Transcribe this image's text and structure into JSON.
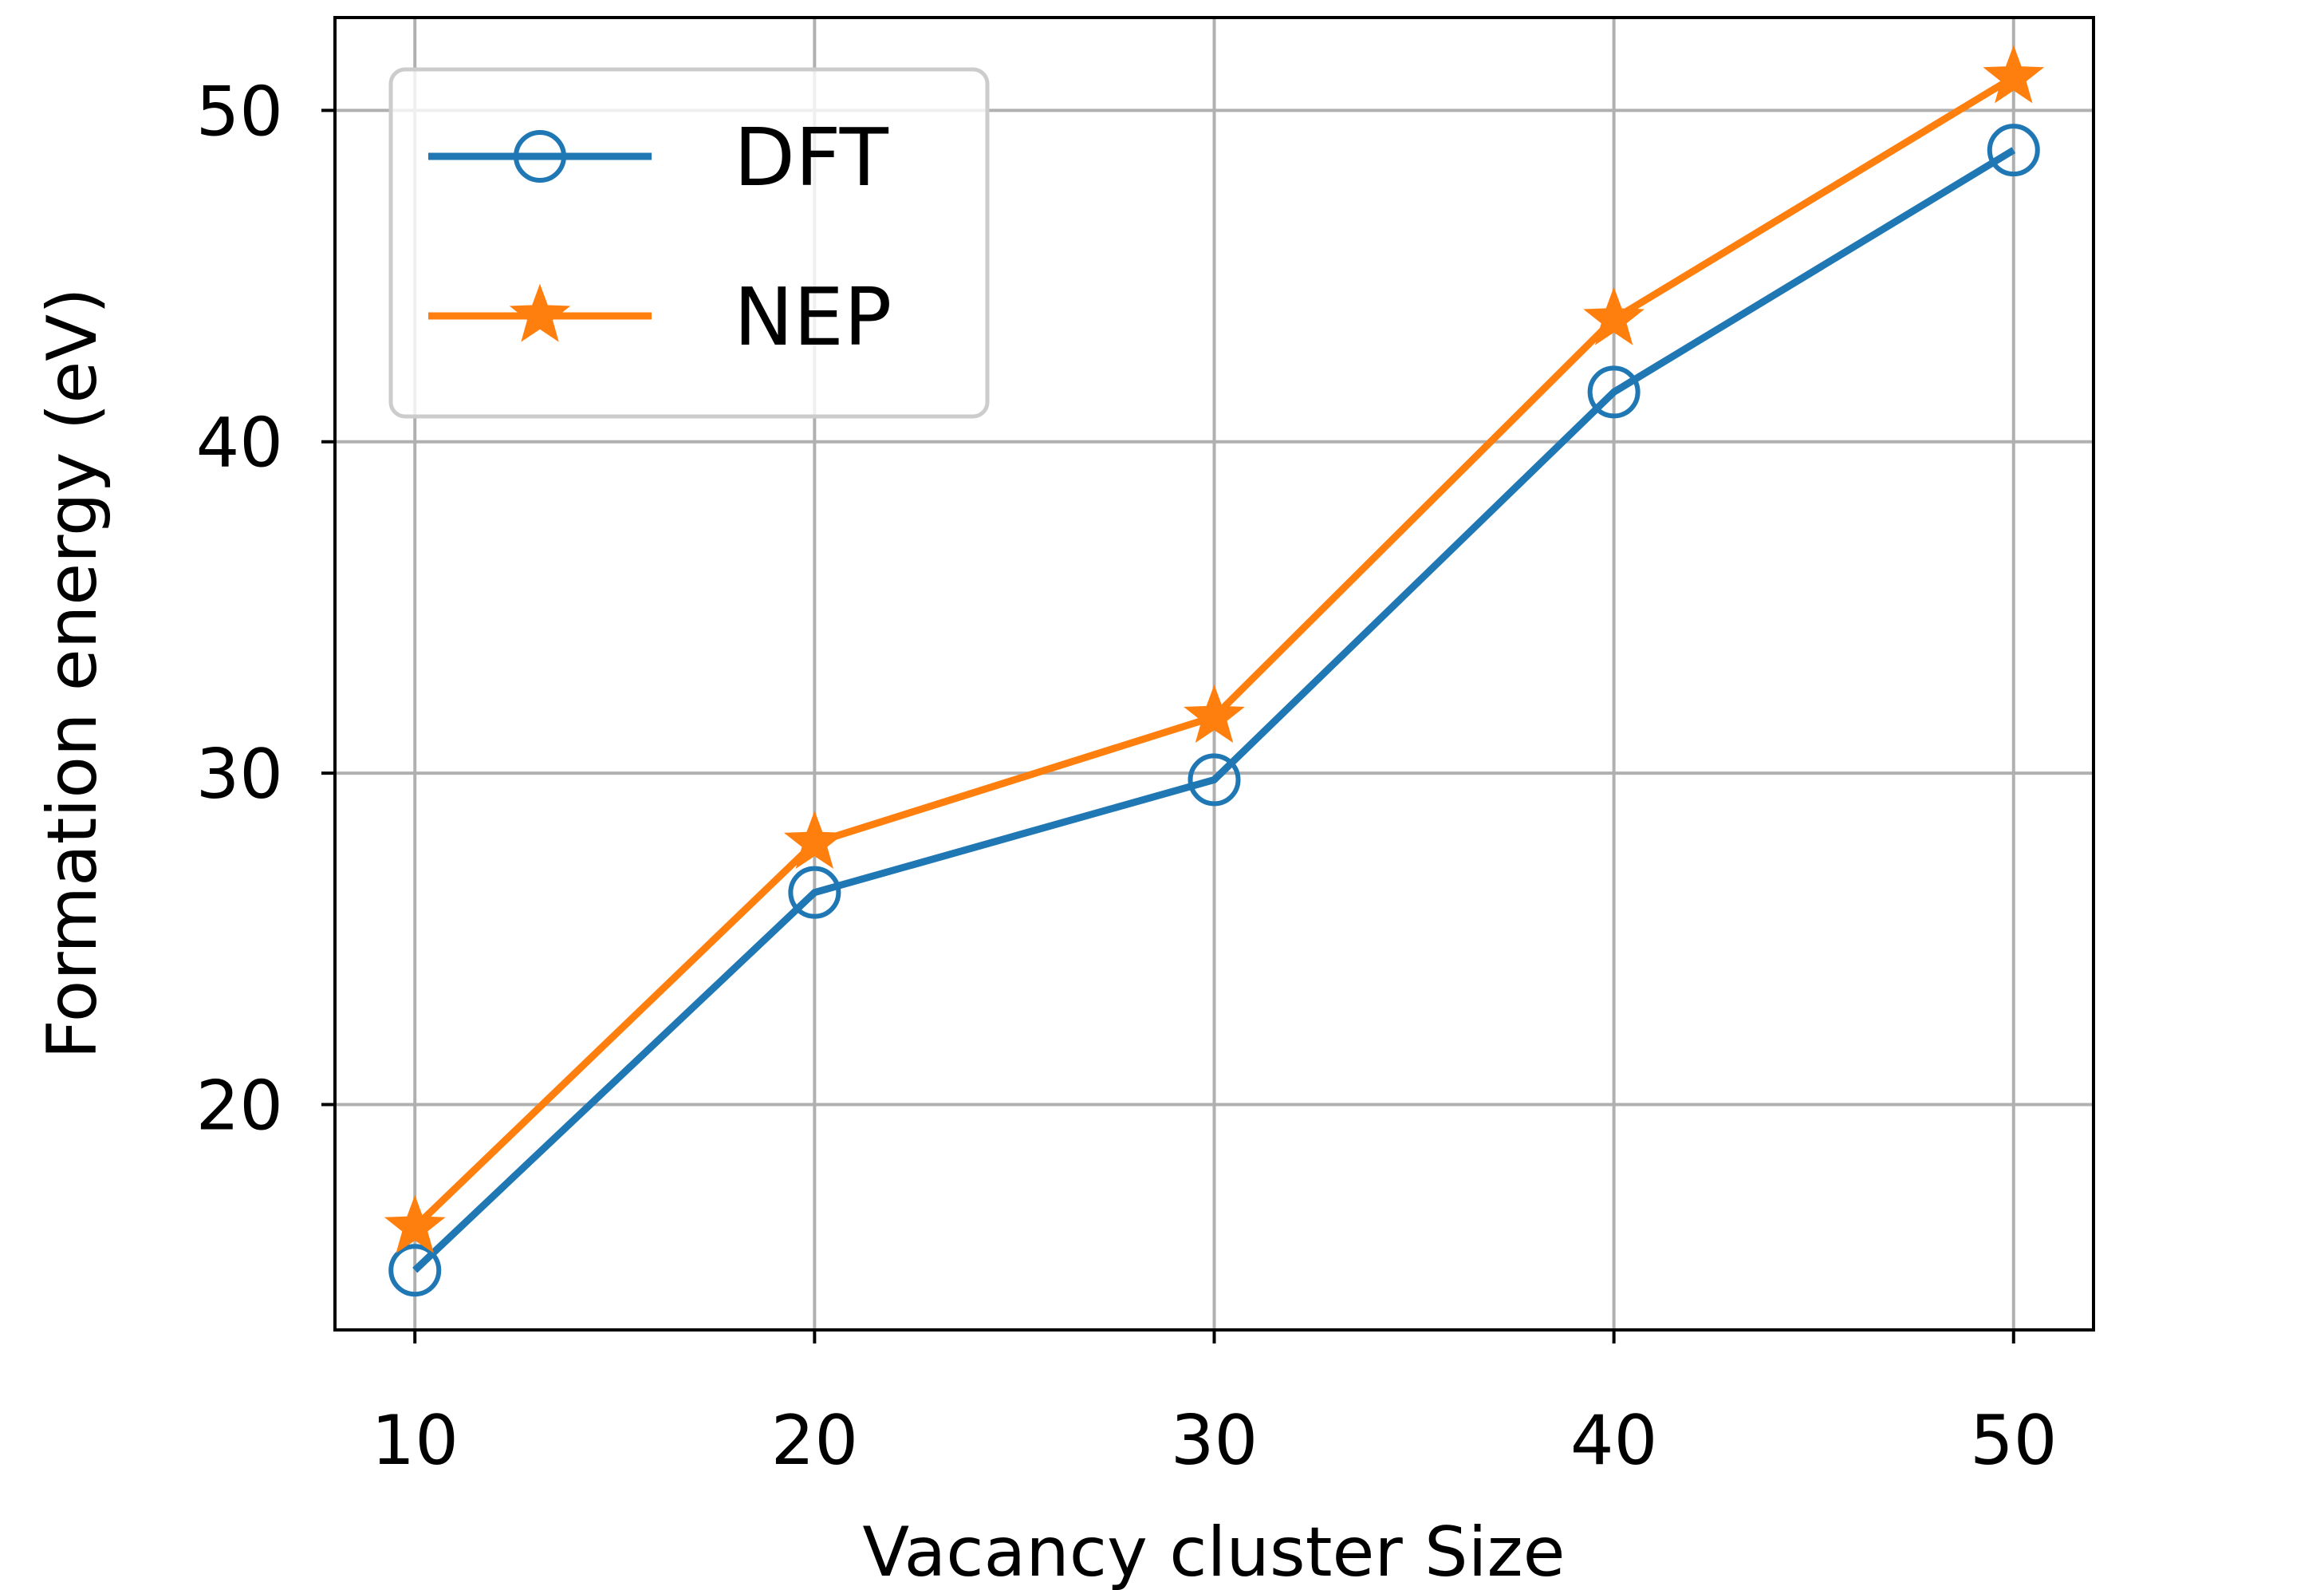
{
  "chart_data": {
    "type": "line",
    "xlabel": "Vacancy cluster Size",
    "ylabel": "Formation energy (eV)",
    "x": [
      10,
      20,
      30,
      40,
      50
    ],
    "xlim": [
      8,
      52
    ],
    "ylim": [
      13.2,
      52.8
    ],
    "xticks": [
      10,
      20,
      30,
      40,
      50
    ],
    "yticks": [
      20,
      30,
      40,
      50
    ],
    "grid": true,
    "legend": {
      "placement": "top-left"
    },
    "series": [
      {
        "name": "DFT",
        "marker": "hollow-circle",
        "color": "#1f77b4",
        "values": [
          15.0,
          26.4,
          29.8,
          41.5,
          48.8
        ]
      },
      {
        "name": "NEP",
        "marker": "star",
        "color": "#ff7f0e",
        "values": [
          16.3,
          27.9,
          31.7,
          43.7,
          51.0
        ]
      }
    ]
  }
}
